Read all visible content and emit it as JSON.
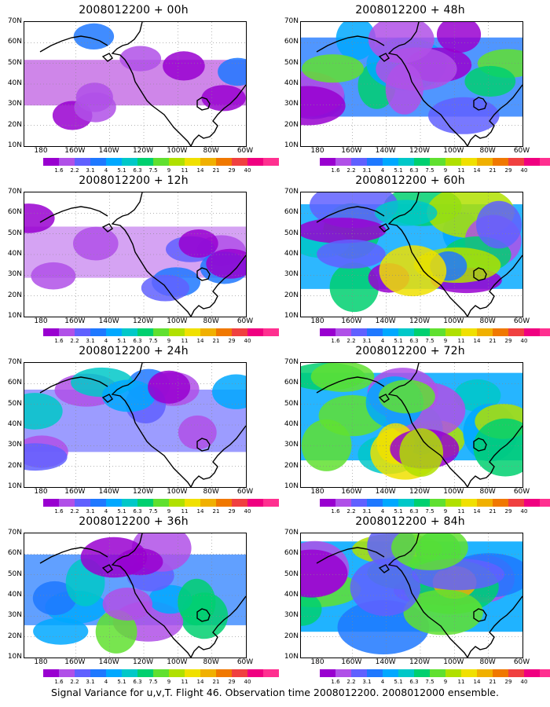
{
  "panels": [
    {
      "title": "2008012200 + 00h",
      "intensity": 0.15
    },
    {
      "title": "2008012200 + 48h",
      "intensity": 0.75
    },
    {
      "title": "2008012200 + 12h",
      "intensity": 0.25
    },
    {
      "title": "2008012200 + 60h",
      "intensity": 0.85
    },
    {
      "title": "2008012200 + 24h",
      "intensity": 0.45
    },
    {
      "title": "2008012200 + 72h",
      "intensity": 0.9
    },
    {
      "title": "2008012200 + 36h",
      "intensity": 0.6
    },
    {
      "title": "2008012200 + 84h",
      "intensity": 0.95
    }
  ],
  "y_ticks": [
    "70N",
    "60N",
    "50N",
    "40N",
    "30N",
    "20N",
    "10N"
  ],
  "x_ticks": [
    "180",
    "160W",
    "140W",
    "120W",
    "100W",
    "80W",
    "60W"
  ],
  "colorbar": {
    "colors": [
      "#9900d0",
      "#b050e8",
      "#6060ff",
      "#1e78ff",
      "#00a8ff",
      "#00c8c8",
      "#00d070",
      "#60e030",
      "#b0e000",
      "#f0e000",
      "#f0b000",
      "#f07800",
      "#f04040",
      "#f00080",
      "#ff3090"
    ],
    "labels": [
      "1.6",
      "2.2",
      "3.1",
      "4",
      "5.1",
      "6.3",
      "7.5",
      "9",
      "11",
      "14",
      "21",
      "29",
      "40"
    ]
  },
  "footer": "Signal Variance for u,v,T. Flight 46. Observation time 2008012200. 2008012000 ensemble."
}
